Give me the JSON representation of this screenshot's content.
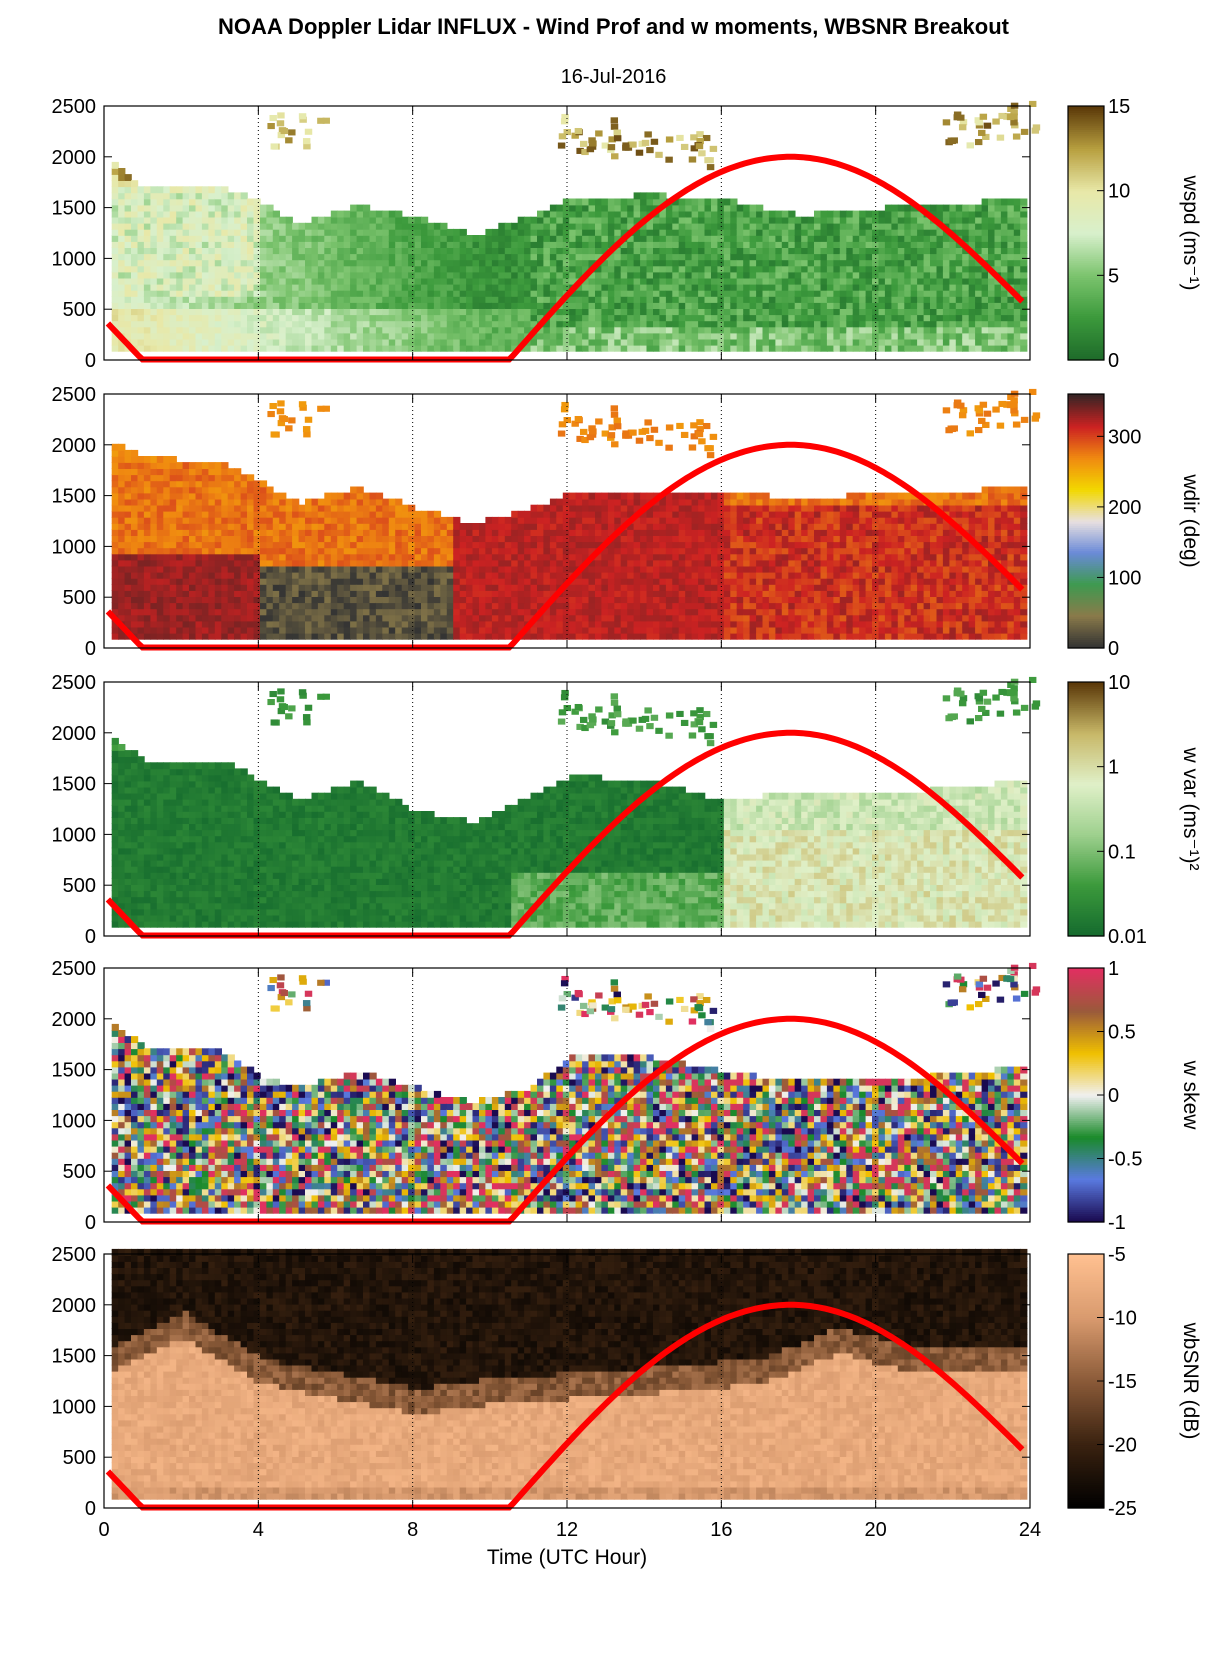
{
  "header": {
    "title": "NOAA Doppler Lidar INFLUX - Wind Prof and w moments, WBSNR Breakout",
    "date": "16-Jul-2016"
  },
  "colors": {
    "sun_curve": "#ff0000",
    "axis": "#000000"
  },
  "chart_data": [
    {
      "type": "heatmap",
      "name": "wspd",
      "colorbar_label": "wspd (ms⁻¹)",
      "colorbar_ticks": [
        "0",
        "5",
        "10",
        "15"
      ],
      "clim": [
        0,
        15
      ],
      "colormap": [
        "#1e6b2a",
        "#3c9a3c",
        "#7cc46e",
        "#d8f0cc",
        "#e8e8a8",
        "#b8a040",
        "#5c3a0a"
      ],
      "xlim": [
        0,
        24
      ],
      "ylim": [
        0,
        2500
      ],
      "xticks": [
        "0",
        "4",
        "8",
        "12",
        "16",
        "20",
        "24"
      ],
      "yticks": [
        "0",
        "500",
        "1000",
        "1500",
        "2000",
        "2500"
      ],
      "grid": "vertical dotted at 4-hour intervals",
      "sun_elevation_curve": {
        "x": [
          0,
          1,
          10.5,
          17.8,
          24
        ],
        "y": [
          400,
          0,
          0,
          2000,
          500
        ]
      }
    },
    {
      "type": "heatmap",
      "name": "wdir",
      "colorbar_label": "wdir (deg)",
      "colorbar_ticks": [
        "0",
        "100",
        "200",
        "300"
      ],
      "clim": [
        0,
        360
      ],
      "colormap": [
        "#333333",
        "#8a7a4a",
        "#3e9a50",
        "#6a8ad8",
        "#e8e0e0",
        "#f2d800",
        "#f08a10",
        "#cc2222",
        "#3a2424"
      ],
      "xlim": [
        0,
        24
      ],
      "ylim": [
        0,
        2500
      ],
      "xticks": [
        "0",
        "4",
        "8",
        "12",
        "16",
        "20",
        "24"
      ],
      "yticks": [
        "0",
        "500",
        "1000",
        "1500",
        "2000",
        "2500"
      ]
    },
    {
      "type": "heatmap",
      "name": "w var",
      "colorbar_label": "w var (ms⁻¹)²",
      "colorbar_ticks": [
        "0.01",
        "0.1",
        "1",
        "10"
      ],
      "clim": [
        0.01,
        10
      ],
      "log_scale": true,
      "colormap": [
        "#156b2e",
        "#3c9a3c",
        "#9ed08e",
        "#e0f0c8",
        "#c8b868",
        "#5c3a0a"
      ],
      "xlim": [
        0,
        24
      ],
      "ylim": [
        0,
        2500
      ],
      "xticks": [
        "0",
        "4",
        "8",
        "12",
        "16",
        "20",
        "24"
      ],
      "yticks": [
        "0",
        "500",
        "1000",
        "1500",
        "2000",
        "2500"
      ]
    },
    {
      "type": "heatmap",
      "name": "w skew",
      "colorbar_label": "w skew",
      "colorbar_ticks": [
        "-1",
        "-0.5",
        "0",
        "0.5",
        "1"
      ],
      "clim": [
        -1,
        1
      ],
      "colormap": [
        "#1a0a50",
        "#5a7ae0",
        "#1a8a2a",
        "#f0f0f0",
        "#f0c000",
        "#9a5a3a",
        "#e03060"
      ],
      "xlim": [
        0,
        24
      ],
      "ylim": [
        0,
        2500
      ],
      "xticks": [
        "0",
        "4",
        "8",
        "12",
        "16",
        "20",
        "24"
      ],
      "yticks": [
        "0",
        "500",
        "1000",
        "1500",
        "2000",
        "2500"
      ]
    },
    {
      "type": "heatmap",
      "name": "wbSNR",
      "colorbar_label": "wbSNR (dB)",
      "colorbar_ticks": [
        "-25",
        "-20",
        "-15",
        "-10",
        "-5"
      ],
      "clim": [
        -25,
        -5
      ],
      "colormap": [
        "#000000",
        "#3a2210",
        "#8a5a38",
        "#d89a6e",
        "#ffc090"
      ],
      "xlim": [
        0,
        24
      ],
      "ylim": [
        0,
        2500
      ],
      "xticks": [
        "0",
        "4",
        "8",
        "12",
        "16",
        "20",
        "24"
      ],
      "yticks": [
        "0",
        "500",
        "1000",
        "1500",
        "2000",
        "2500"
      ],
      "xlabel": "Time (UTC Hour)"
    }
  ]
}
